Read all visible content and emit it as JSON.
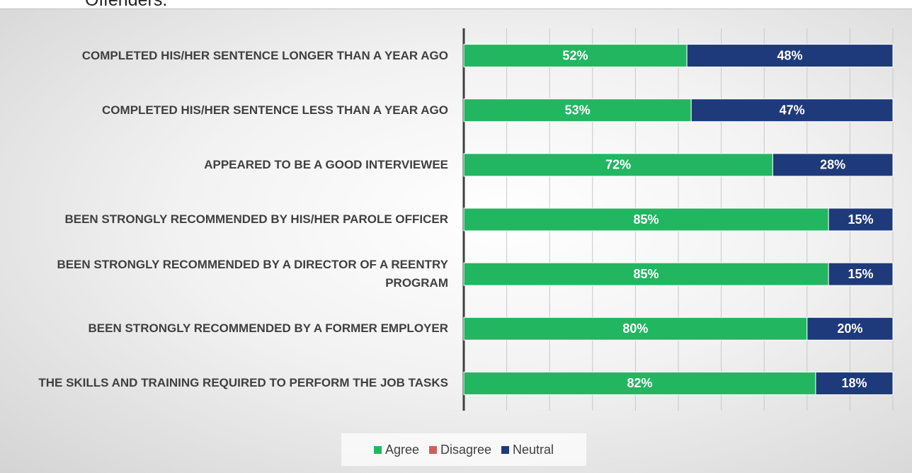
{
  "chart_data": {
    "type": "stacked-bar-horizontal",
    "title": "Offenders.",
    "categories": [
      "COMPLETED HIS/HER SENTENCE LONGER THAN A YEAR AGO",
      "COMPLETED HIS/HER SENTENCE LESS THAN A YEAR AGO",
      "APPEARED TO BE A GOOD INTERVIEWEE",
      "BEEN STRONGLY RECOMMENDED BY HIS/HER PAROLE OFFICER",
      "BEEN STRONGLY RECOMMENDED BY A DIRECTOR OF A REENTRY PROGRAM",
      "BEEN STRONGLY RECOMMENDED BY A FORMER EMPLOYER",
      "THE SKILLS AND TRAINING REQUIRED TO PERFORM THE JOB TASKS"
    ],
    "series": [
      {
        "name": "Agree",
        "color": "#22b661",
        "values": [
          52,
          53,
          72,
          85,
          85,
          80,
          82
        ],
        "value_labels": [
          "52%",
          "53%",
          "72%",
          "85%",
          "85%",
          "80%",
          "82%"
        ]
      },
      {
        "name": "Disagree",
        "color": "#cf5f5f",
        "values": [
          0,
          0,
          0,
          0,
          0,
          0,
          0
        ]
      },
      {
        "name": "Neutral",
        "color": "#1f3a7a",
        "values": [
          48,
          47,
          28,
          15,
          15,
          20,
          18
        ],
        "value_labels": [
          "48%",
          "47%",
          "28%",
          "15%",
          "15%",
          "20%",
          "18%"
        ]
      }
    ],
    "xlim": [
      0,
      100
    ],
    "xticks": [
      0,
      10,
      20,
      30,
      40,
      50,
      60,
      70,
      80,
      90,
      100
    ],
    "grid": true,
    "legend": "bottom"
  }
}
